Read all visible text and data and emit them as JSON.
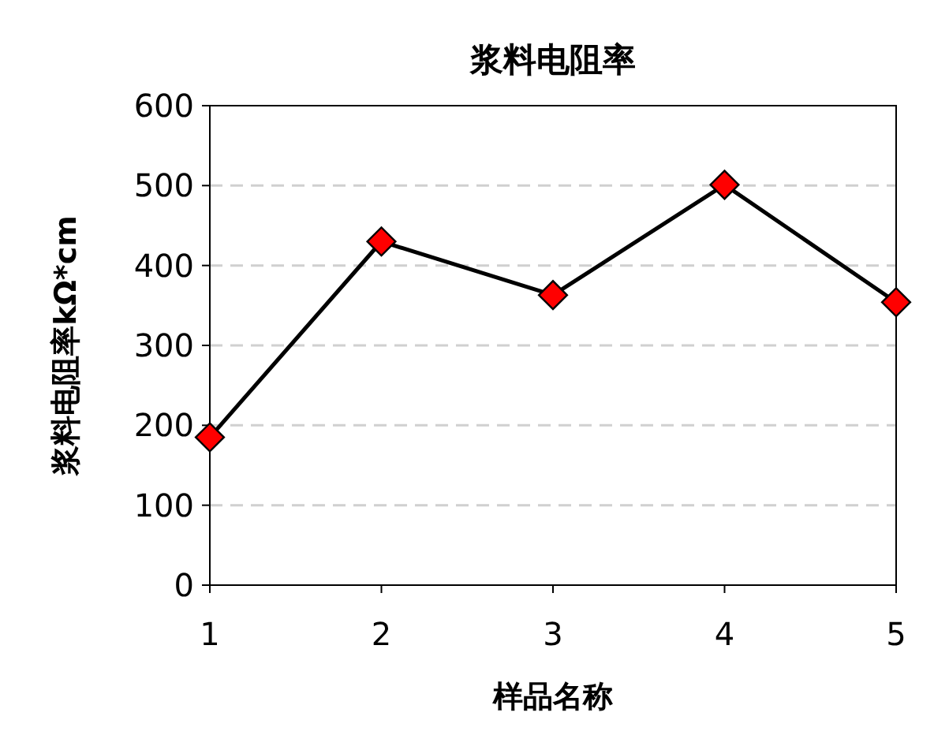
{
  "chart_data": {
    "type": "line",
    "title": "浆料电阻率",
    "xlabel": "样品名称",
    "ylabel": "浆料电阻率kΩ*cm",
    "x": [
      1,
      2,
      3,
      4,
      5
    ],
    "series": [
      {
        "color": "#000000",
        "values": [
          185,
          430,
          363,
          501,
          354
        ]
      }
    ],
    "xlim": [
      1,
      5
    ],
    "xticks": [
      1,
      2,
      3,
      4,
      5
    ],
    "ylim": [
      0,
      600
    ],
    "yticks": [
      0,
      100,
      200,
      300,
      400,
      500,
      600
    ],
    "grid": "y",
    "marker": "diamond",
    "line_style": "solid"
  }
}
